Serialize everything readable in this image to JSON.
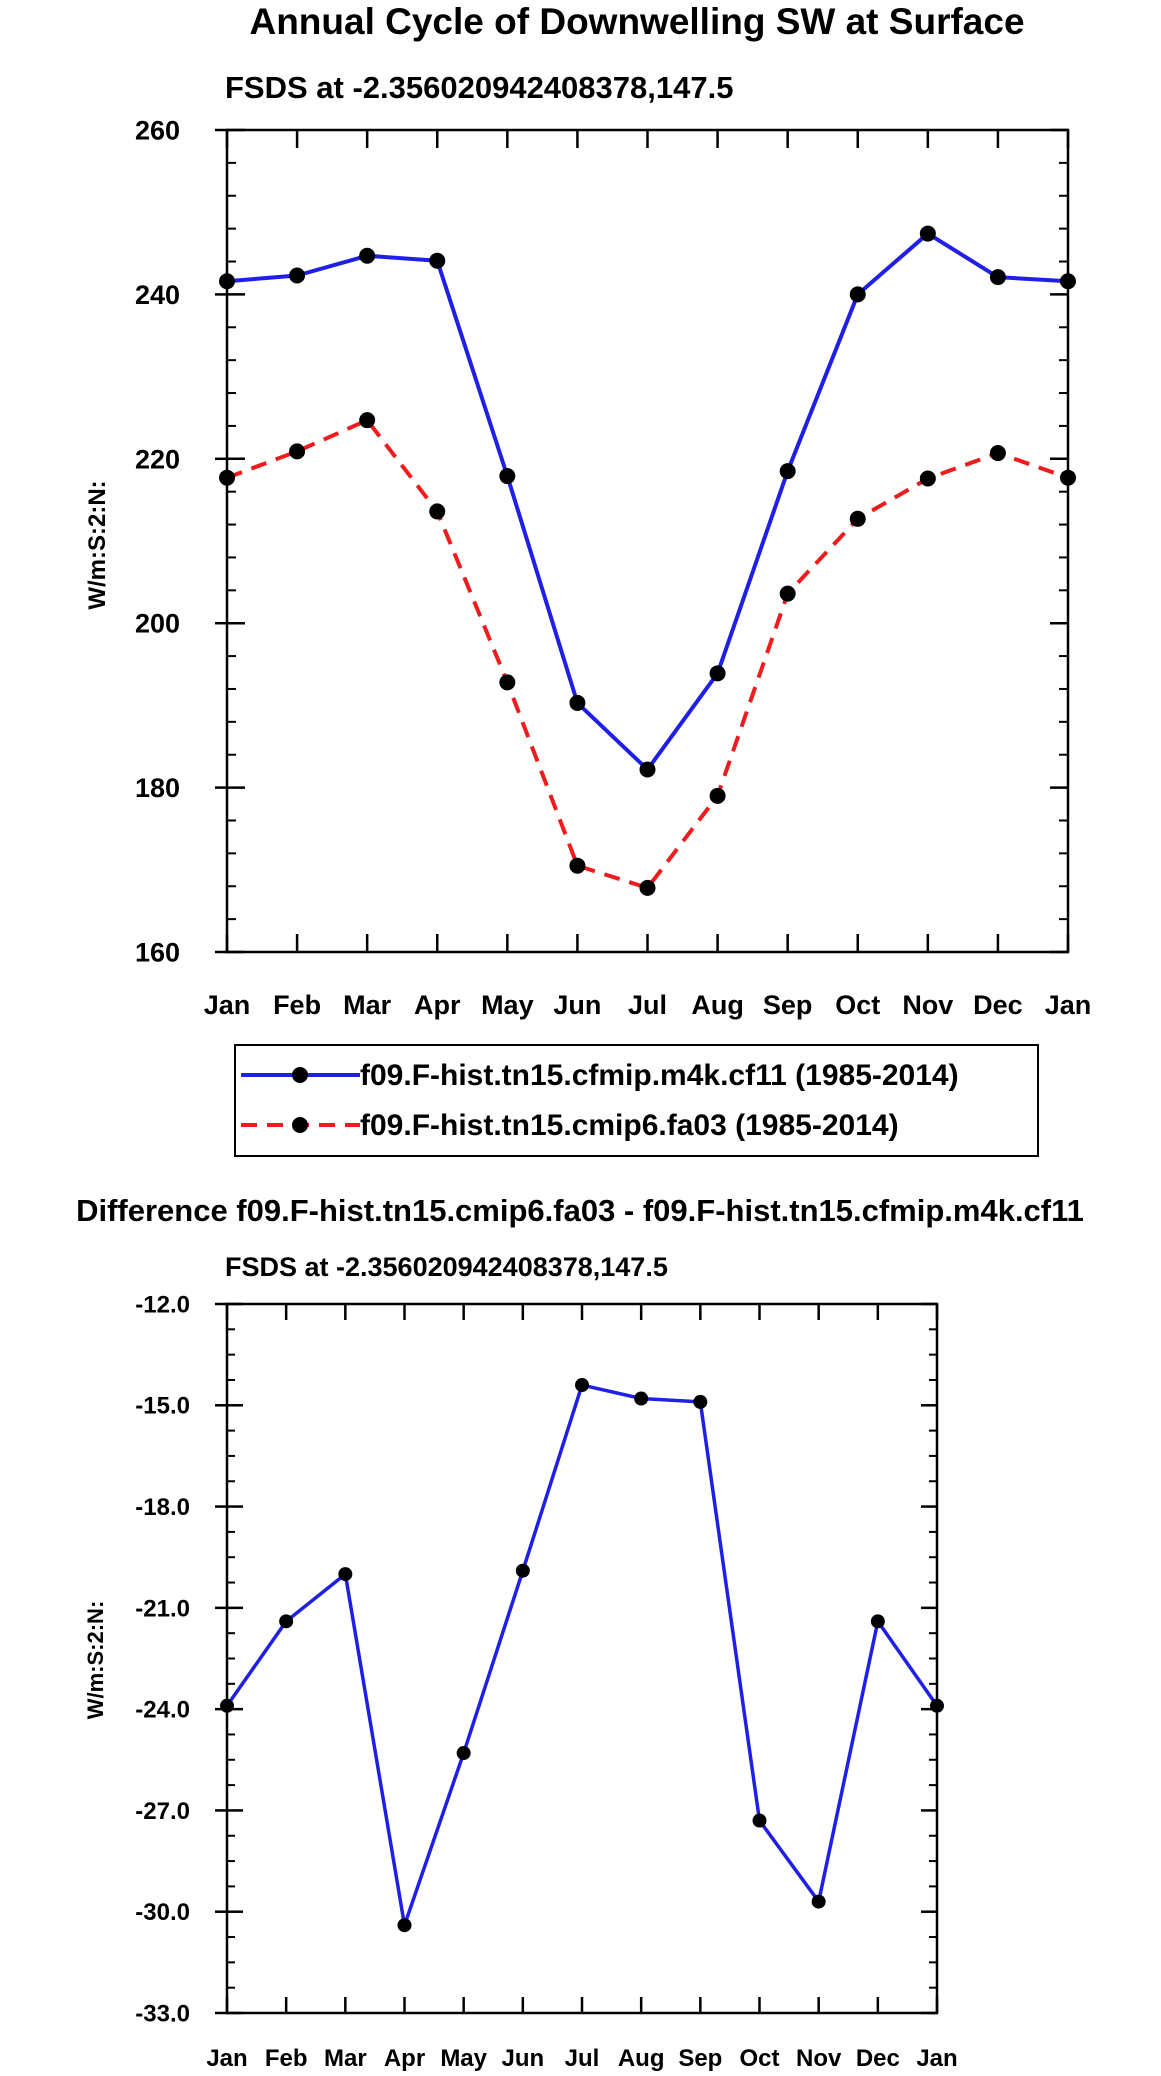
{
  "chart_data": [
    {
      "type": "line",
      "title": "Annual Cycle of Downwelling SW at Surface",
      "subtitle": "FSDS at -2.356020942408378,147.5",
      "xlabel": "",
      "ylabel": "W/m:S:2:N:",
      "categories": [
        "Jan",
        "Feb",
        "Mar",
        "Apr",
        "May",
        "Jun",
        "Jul",
        "Aug",
        "Sep",
        "Oct",
        "Nov",
        "Dec",
        "Jan"
      ],
      "ylim": [
        160,
        260
      ],
      "yticks": [
        "160",
        "180",
        "200",
        "220",
        "240",
        "260"
      ],
      "grid": false,
      "legend_position": "bottom",
      "series": [
        {
          "name": "f09.F-hist.tn15.cfmip.m4k.cf11 (1985-2014)",
          "color": "#1f1fe6",
          "dash": "solid",
          "values": [
            241.6,
            242.3,
            244.7,
            244.1,
            217.9,
            190.3,
            182.2,
            193.9,
            218.5,
            240.0,
            247.4,
            242.1,
            241.6
          ]
        },
        {
          "name": "f09.F-hist.tn15.cmip6.fa03 (1985-2014)",
          "color": "#ee1c1c",
          "dash": "dashed",
          "values": [
            217.7,
            220.9,
            224.7,
            213.6,
            192.8,
            170.5,
            167.8,
            179.0,
            203.6,
            212.7,
            217.6,
            220.7,
            217.7
          ]
        }
      ]
    },
    {
      "type": "line",
      "title": "Difference f09.F-hist.tn15.cmip6.fa03 - f09.F-hist.tn15.cfmip.m4k.cf11",
      "subtitle": "FSDS at -2.356020942408378,147.5",
      "xlabel": "",
      "ylabel": "W/m:S:2:N:",
      "categories": [
        "Jan",
        "Feb",
        "Mar",
        "Apr",
        "May",
        "Jun",
        "Jul",
        "Aug",
        "Sep",
        "Oct",
        "Nov",
        "Dec",
        "Jan"
      ],
      "ylim": [
        -33.0,
        -12.0
      ],
      "yticks": [
        "-33.0",
        "-30.0",
        "-27.0",
        "-24.0",
        "-21.0",
        "-18.0",
        "-15.0",
        "-12.0"
      ],
      "grid": false,
      "series": [
        {
          "name": "Difference",
          "color": "#1f1fe6",
          "dash": "solid",
          "values": [
            -23.9,
            -21.4,
            -20.0,
            -30.4,
            -25.3,
            -19.9,
            -14.4,
            -14.8,
            -14.9,
            -27.3,
            -29.7,
            -21.4,
            -23.9
          ]
        }
      ]
    }
  ]
}
